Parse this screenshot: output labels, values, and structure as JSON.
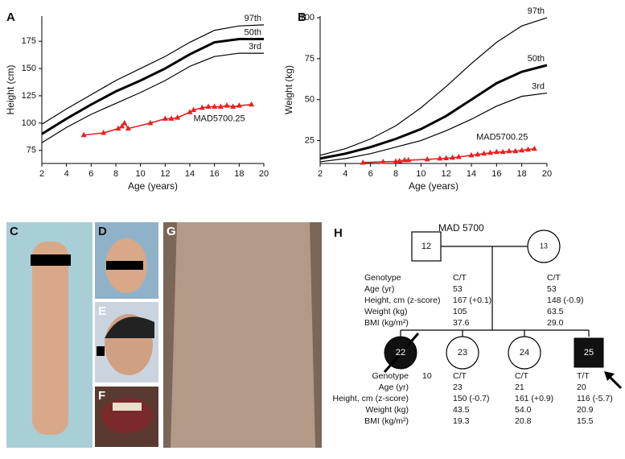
{
  "chart_data": [
    {
      "type": "line",
      "panel": "A",
      "xlabel": "Age (years)",
      "ylabel": "Height (cm)",
      "xlim": [
        2,
        20
      ],
      "xticks": [
        2,
        4,
        6,
        8,
        10,
        12,
        14,
        16,
        18,
        20
      ],
      "ylim": [
        63,
        198
      ],
      "yticks": [
        75,
        100,
        125,
        150,
        175
      ],
      "series": [
        {
          "name": "97th",
          "color": "#000000",
          "line_width": 1.2,
          "x": [
            2,
            4,
            6,
            8,
            10,
            12,
            14,
            16,
            18,
            20
          ],
          "values": [
            99,
            113,
            126,
            139,
            150,
            161,
            174,
            185,
            189,
            190
          ]
        },
        {
          "name": "50th",
          "color": "#000000",
          "line_width": 3,
          "x": [
            2,
            4,
            6,
            8,
            10,
            12,
            14,
            16,
            18,
            20
          ],
          "values": [
            90,
            104,
            117,
            129,
            139,
            150,
            163,
            174,
            177,
            177
          ]
        },
        {
          "name": "3rd",
          "color": "#000000",
          "line_width": 1.2,
          "x": [
            2,
            4,
            6,
            8,
            10,
            12,
            14,
            16,
            18,
            20
          ],
          "values": [
            82,
            96,
            108,
            118,
            128,
            139,
            152,
            161,
            164,
            164
          ]
        },
        {
          "name": "MAD5700.25",
          "color": "#e8211f",
          "line_width": 1.6,
          "markers": true,
          "x": [
            5.4,
            7,
            8.2,
            8.5,
            8.7,
            9,
            10.8,
            12,
            12.5,
            13,
            14,
            14.3,
            15,
            15.5,
            16,
            16.5,
            17,
            17.5,
            18,
            19
          ],
          "values": [
            89,
            91,
            95,
            97,
            100,
            95,
            100,
            104,
            104,
            105,
            110,
            112,
            114,
            115,
            115,
            115,
            116,
            115,
            116,
            117
          ]
        }
      ]
    },
    {
      "type": "line",
      "panel": "B",
      "xlabel": "Age (years)",
      "ylabel": "Weight (kg)",
      "xlim": [
        2,
        20
      ],
      "xticks": [
        2,
        4,
        6,
        8,
        10,
        12,
        14,
        16,
        18,
        20
      ],
      "ylim": [
        11,
        101
      ],
      "yticks": [
        25,
        50,
        75,
        100
      ],
      "series": [
        {
          "name": "97th",
          "color": "#000000",
          "line_width": 1.2,
          "x": [
            2,
            4,
            6,
            8,
            10,
            12,
            14,
            16,
            18,
            20
          ],
          "values": [
            16,
            20,
            26,
            34,
            45,
            58,
            72,
            85,
            95,
            100
          ]
        },
        {
          "name": "50th",
          "color": "#000000",
          "line_width": 3,
          "x": [
            2,
            4,
            6,
            8,
            10,
            12,
            14,
            16,
            18,
            20
          ],
          "values": [
            14,
            17,
            21,
            26,
            32,
            40,
            50,
            60,
            67,
            71
          ]
        },
        {
          "name": "3rd",
          "color": "#000000",
          "line_width": 1.2,
          "x": [
            2,
            4,
            6,
            8,
            10,
            12,
            14,
            16,
            18,
            20
          ],
          "values": [
            12,
            14,
            17,
            21,
            25,
            31,
            38,
            46,
            52,
            54
          ]
        },
        {
          "name": "MAD5700.25",
          "color": "#e8211f",
          "line_width": 1.6,
          "markers": true,
          "x": [
            5.4,
            7,
            8,
            8.3,
            8.7,
            9,
            10.5,
            11.5,
            12,
            12.5,
            13,
            14,
            14.5,
            15,
            15.5,
            16,
            16.5,
            17,
            17.5,
            18,
            18.5,
            19
          ],
          "values": [
            11.5,
            12,
            12.2,
            12.5,
            13,
            13,
            13.5,
            14,
            14.2,
            14.5,
            15,
            16,
            16.5,
            17,
            17.5,
            18,
            18,
            18.5,
            18.5,
            19,
            19.5,
            20
          ]
        }
      ]
    }
  ],
  "photos": [
    {
      "label": "C"
    },
    {
      "label": "D"
    },
    {
      "label": "E"
    },
    {
      "label": "F"
    },
    {
      "label": "G"
    }
  ],
  "pedigree": {
    "panel": "H",
    "title": "MAD 5700",
    "parent_row_labels": [
      "Genotype",
      "Age (yr)",
      "Height, cm (z-score)",
      "Weight (kg)",
      "BMI (kg/m²)"
    ],
    "child_row_labels": [
      "Genotype",
      "Age (yr)",
      "Height, cm (z-score)",
      "Weight (kg)",
      "BMI (kg/m²)"
    ],
    "parents": [
      {
        "id": "12",
        "values": [
          "C/T",
          "53",
          "167 (+0.1)",
          "105",
          "37.6"
        ]
      },
      {
        "id": "13",
        "values": [
          "C/T",
          "53",
          "148 (-0.9)",
          "63.5",
          "29.0"
        ]
      }
    ],
    "children": [
      {
        "id": "22",
        "values": [
          "10"
        ]
      },
      {
        "id": "23",
        "values": [
          "C/T",
          "23",
          "150 (-0.7)",
          "43.5",
          "19.3"
        ]
      },
      {
        "id": "24",
        "values": [
          "C/T",
          "21",
          "161 (+0.9)",
          "54.0",
          "20.8"
        ]
      },
      {
        "id": "25",
        "values": [
          "T/T",
          "20",
          "116 (-5.7)",
          "20.9",
          "15.5"
        ]
      }
    ]
  }
}
